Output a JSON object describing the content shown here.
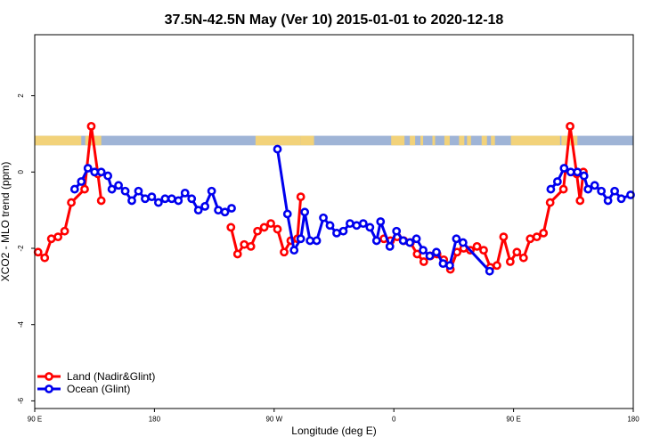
{
  "chart_data": {
    "type": "line",
    "title": "37.5N-42.5N May (Ver 10)   2015-01-01 to 2020-12-18",
    "xlabel": "Longitude (deg E)",
    "ylabel": "XCO2 - MLO trend (ppm)",
    "xlim": [
      90,
      540
    ],
    "ylim": [
      -6.2,
      3.6
    ],
    "x_ticks": [
      {
        "value": 90,
        "label": "90 E"
      },
      {
        "value": 180,
        "label": "180"
      },
      {
        "value": 270,
        "label": "90 W"
      },
      {
        "value": 360,
        "label": "0"
      },
      {
        "value": 450,
        "label": "90 E"
      },
      {
        "value": 540,
        "label": "180"
      }
    ],
    "y_ticks": [
      -6,
      -4,
      -2,
      0,
      2
    ],
    "map_band": {
      "y_range": [
        0.7,
        0.95
      ],
      "land_color": "#f2d27a",
      "ocean_color": "#9fb4d6"
    },
    "legend": {
      "position": "bottom-left"
    },
    "series": [
      {
        "name": "Land (Nadir&Glint)",
        "color": "#ff0000",
        "segments": [
          [
            [
              92.5,
              -2.1
            ],
            [
              97.5,
              -2.25
            ],
            [
              102.5,
              -1.75
            ],
            [
              107.5,
              -1.7
            ],
            [
              112.5,
              -1.55
            ],
            [
              117.5,
              -0.8
            ],
            [
              127.5,
              -0.45
            ],
            [
              132.5,
              1.2
            ],
            [
              137.5,
              -0.05
            ],
            [
              140,
              -0.75
            ]
          ],
          [
            [
              237.5,
              -1.45
            ],
            [
              242.5,
              -2.15
            ],
            [
              247.5,
              -1.9
            ],
            [
              252.5,
              -1.95
            ],
            [
              257.5,
              -1.55
            ],
            [
              262.5,
              -1.45
            ],
            [
              267.5,
              -1.35
            ],
            [
              272.5,
              -1.5
            ],
            [
              277.5,
              -2.1
            ],
            [
              282.5,
              -1.8
            ],
            [
              287.5,
              -1.75
            ],
            [
              290,
              -0.65
            ]
          ],
          [
            [
              352.5,
              -1.75
            ],
            [
              357.5,
              -1.8
            ],
            [
              362.5,
              -1.7
            ],
            [
              367.5,
              -1.8
            ],
            [
              372.5,
              -1.85
            ],
            [
              377.5,
              -2.15
            ],
            [
              382.5,
              -2.35
            ],
            [
              387.5,
              -2.2
            ],
            [
              392.5,
              -2.15
            ],
            [
              397.5,
              -2.3
            ],
            [
              402.5,
              -2.55
            ],
            [
              407.5,
              -2.1
            ],
            [
              412.5,
              -2.0
            ],
            [
              417.5,
              -2.05
            ],
            [
              422.5,
              -1.95
            ],
            [
              427.5,
              -2.05
            ],
            [
              432.5,
              -2.5
            ],
            [
              437.5,
              -2.45
            ],
            [
              442.5,
              -1.7
            ],
            [
              447.5,
              -2.35
            ],
            [
              452.5,
              -2.1
            ],
            [
              457.5,
              -2.25
            ],
            [
              462.5,
              -1.75
            ],
            [
              467.5,
              -1.7
            ],
            [
              472.5,
              -1.6
            ],
            [
              477.5,
              -0.8
            ],
            [
              487.5,
              -0.45
            ],
            [
              492.5,
              1.2
            ],
            [
              497.5,
              -0.05
            ],
            [
              500,
              -0.75
            ],
            [
              502.5,
              0.0
            ]
          ]
        ]
      },
      {
        "name": "Ocean (Glint)",
        "color": "#0000ee",
        "segments": [
          [
            [
              120,
              -0.45
            ],
            [
              125,
              -0.25
            ],
            [
              130,
              0.1
            ],
            [
              135,
              0.0
            ],
            [
              140,
              0.0
            ],
            [
              145,
              -0.1
            ],
            [
              148,
              -0.45
            ],
            [
              153,
              -0.35
            ],
            [
              158,
              -0.5
            ],
            [
              163,
              -0.75
            ],
            [
              168,
              -0.5
            ],
            [
              173,
              -0.7
            ],
            [
              178,
              -0.65
            ],
            [
              183,
              -0.8
            ],
            [
              188,
              -0.7
            ],
            [
              193,
              -0.7
            ],
            [
              198,
              -0.75
            ],
            [
              203,
              -0.55
            ],
            [
              208,
              -0.7
            ],
            [
              213,
              -1.0
            ],
            [
              218,
              -0.9
            ],
            [
              223,
              -0.5
            ],
            [
              228,
              -1.0
            ],
            [
              233,
              -1.05
            ],
            [
              238,
              -0.95
            ]
          ],
          [
            [
              272.5,
              0.6
            ],
            [
              280,
              -1.1
            ],
            [
              285,
              -2.05
            ],
            [
              290,
              -1.75
            ],
            [
              293,
              -1.05
            ],
            [
              297,
              -1.8
            ],
            [
              302,
              -1.8
            ],
            [
              307,
              -1.2
            ],
            [
              312,
              -1.4
            ],
            [
              317,
              -1.6
            ],
            [
              322,
              -1.55
            ],
            [
              327,
              -1.35
            ],
            [
              332,
              -1.4
            ],
            [
              337,
              -1.35
            ],
            [
              342,
              -1.45
            ],
            [
              347,
              -1.8
            ],
            [
              350,
              -1.3
            ],
            [
              357,
              -1.95
            ],
            [
              362,
              -1.55
            ],
            [
              367,
              -1.8
            ],
            [
              372,
              -1.85
            ],
            [
              377,
              -1.75
            ],
            [
              382,
              -2.05
            ],
            [
              387,
              -2.2
            ],
            [
              392,
              -2.1
            ],
            [
              397,
              -2.4
            ],
            [
              402,
              -2.45
            ],
            [
              407,
              -1.75
            ],
            [
              412,
              -1.85
            ],
            [
              432,
              -2.6
            ]
          ],
          [
            [
              478,
              -0.45
            ],
            [
              483,
              -0.25
            ],
            [
              488,
              0.1
            ],
            [
              493,
              0.0
            ],
            [
              498,
              0.0
            ],
            [
              503,
              -0.1
            ],
            [
              506,
              -0.45
            ],
            [
              511,
              -0.35
            ],
            [
              516,
              -0.5
            ],
            [
              521,
              -0.75
            ],
            [
              526,
              -0.5
            ],
            [
              531,
              -0.7
            ],
            [
              538,
              -0.6
            ]
          ]
        ]
      }
    ]
  }
}
